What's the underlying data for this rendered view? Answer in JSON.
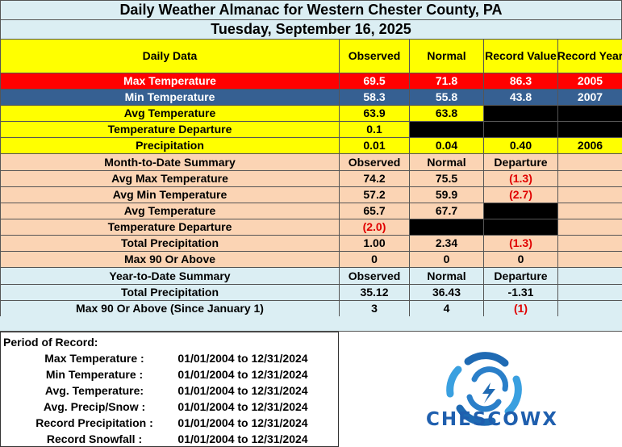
{
  "header": {
    "title": "Daily Weather Almanac for Western Chester County, PA",
    "date": "Tuesday, September 16, 2025"
  },
  "daily": {
    "columns": [
      "Daily Data",
      "Observed",
      "Normal",
      "Record Value",
      "Record Year"
    ],
    "rows": [
      [
        "Max Temperature",
        "69.5",
        "71.8",
        "86.3",
        "2005"
      ],
      [
        "Min Temperature",
        "58.3",
        "55.8",
        "43.8",
        "2007"
      ],
      [
        "Avg Temperature",
        "63.9",
        "63.8"
      ],
      [
        "Temperature Departure",
        "0.1"
      ],
      [
        "Precipitation",
        "0.01",
        "0.04",
        "0.40",
        "2006"
      ]
    ]
  },
  "month_to_date": {
    "columns": [
      "Month-to-Date Summary",
      "Observed",
      "Normal",
      "Departure"
    ],
    "rows": [
      [
        "Avg Max Temperature",
        "74.2",
        "75.5",
        "(1.3)"
      ],
      [
        "Avg Min Temperature",
        "57.2",
        "59.9",
        "(2.7)"
      ],
      [
        "Avg Temperature",
        "65.7",
        "67.7"
      ],
      [
        "Temperature Departure",
        "(2.0)"
      ],
      [
        "Total Precipitation",
        "1.00",
        "2.34",
        "(1.3)"
      ],
      [
        "Max 90 Or Above",
        "0",
        "0",
        "0"
      ]
    ]
  },
  "year_to_date": {
    "columns": [
      "Year-to-Date Summary",
      "Observed",
      "Normal",
      "Departure"
    ],
    "rows": [
      [
        "Total Precipitation",
        "35.12",
        "36.43",
        "-1.31"
      ],
      [
        "Max 90 Or Above (Since January 1)",
        "3",
        "4",
        "(1)"
      ]
    ]
  },
  "period_of_record": {
    "title": "Period of Record:",
    "items": [
      {
        "label": "Max Temperature :",
        "range": "01/01/2004 to 12/31/2024"
      },
      {
        "label": "Min Temperature :",
        "range": "01/01/2004 to 12/31/2024"
      },
      {
        "label": "Avg. Temperature:",
        "range": "01/01/2004 to 12/31/2024"
      },
      {
        "label": "Avg. Precip/Snow :",
        "range": "01/01/2004 to 12/31/2024"
      },
      {
        "label": "Record Precipitation :",
        "range": "01/01/2004 to 12/31/2024"
      },
      {
        "label": "Record Snowfall :",
        "range": "01/01/2004 to 12/31/2024"
      }
    ]
  },
  "logo": {
    "text": "CHESCOWX"
  }
}
